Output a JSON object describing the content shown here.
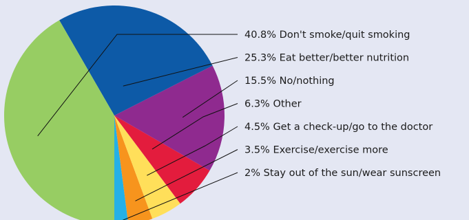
{
  "chart_data": {
    "type": "pie",
    "categories": [
      "Don't smoke/quit smoking",
      "Eat better/better nutrition",
      "No/nothing",
      "Other",
      "Get a check-up/go to the doctor",
      "Exercise/exercise more",
      "Stay out of the sun/wear sunscreen"
    ],
    "values": [
      40.8,
      25.3,
      15.5,
      6.3,
      4.5,
      3.5,
      2
    ],
    "labels": [
      "40.8% Don't smoke/quit smoking",
      "25.3% Eat better/better nutrition",
      "15.5% No/nothing",
      "6.3% Other",
      "4.5% Get a check-up/go to the doctor",
      "3.5% Exercise/exercise more",
      "2% Stay out of the sun/wear sunscreen"
    ],
    "colors": [
      "#97cd63",
      "#0d5aa7",
      "#8f2a8f",
      "#e31c3d",
      "#ffdf5a",
      "#f7941d",
      "#25b0e7"
    ],
    "legend": "right",
    "title": "",
    "grid": false
  }
}
